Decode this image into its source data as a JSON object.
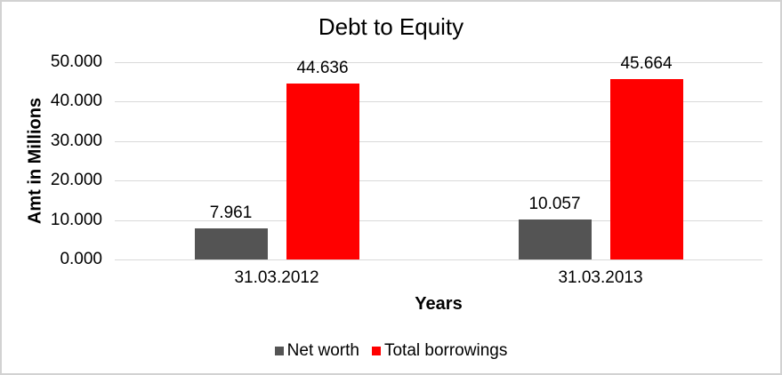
{
  "chart_data": {
    "type": "bar",
    "title": "Debt to Equity",
    "xlabel": "Years",
    "ylabel": "Amt in Millions",
    "categories": [
      "31.03.2012",
      "31.03.2013"
    ],
    "series": [
      {
        "name": "Net worth",
        "color": "#545454",
        "values": [
          7.961,
          10.057
        ],
        "labels": [
          "7.961",
          "10.057"
        ]
      },
      {
        "name": "Total borrowings",
        "color": "#ff0000",
        "values": [
          44.636,
          45.664
        ],
        "labels": [
          "44.636",
          "45.664"
        ]
      }
    ],
    "ylim": [
      0,
      50
    ],
    "yticks": [
      {
        "value": 0,
        "label": "0.000"
      },
      {
        "value": 10,
        "label": "10.000"
      },
      {
        "value": 20,
        "label": "20.000"
      },
      {
        "value": 30,
        "label": "30.000"
      },
      {
        "value": 40,
        "label": "40.000"
      },
      {
        "value": 50,
        "label": "50.000"
      }
    ],
    "grid": true,
    "legend_position": "bottom",
    "colors": {
      "text": "#000000",
      "gridline": "#d9d9d9",
      "background": "#ffffff",
      "border": "#d2d2d2"
    }
  }
}
